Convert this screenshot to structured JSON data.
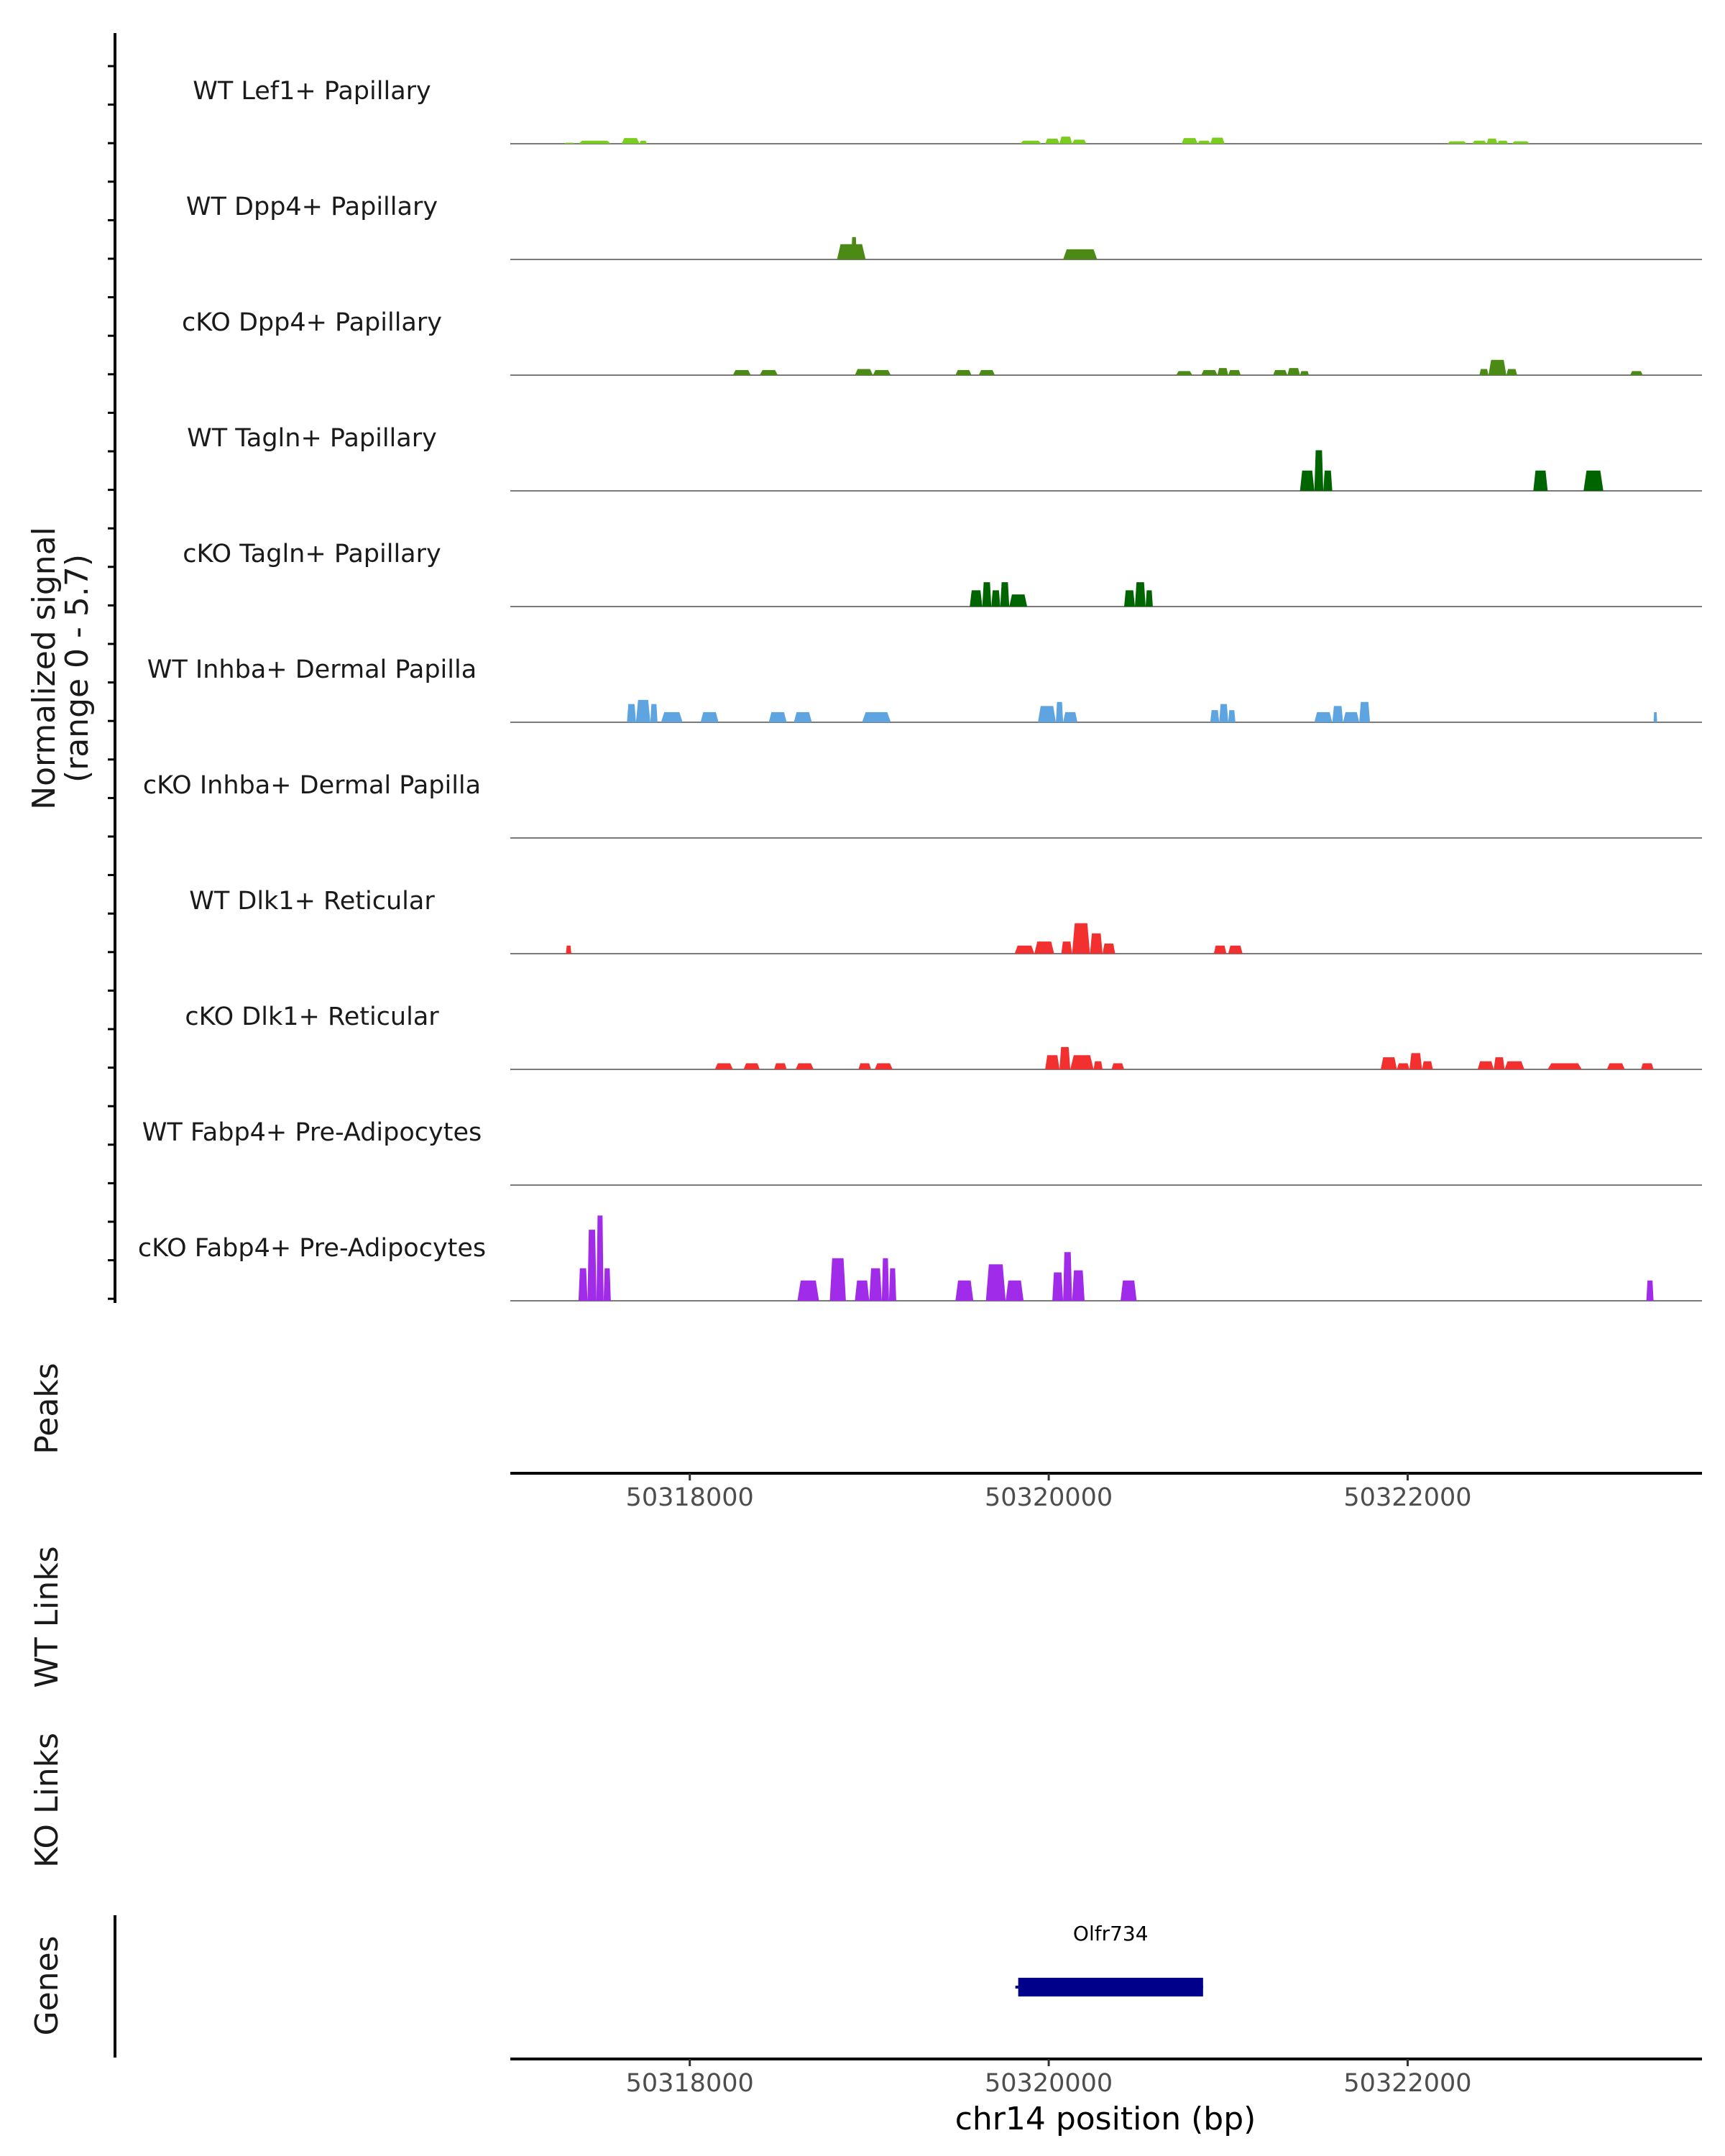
{
  "chart_data": {
    "type": "area",
    "chromosome": "chr14",
    "x_range": [
      50317000,
      50323640
    ],
    "y_range": [
      0,
      5.7
    ],
    "signal_axis_label": [
      "Normalized signal",
      "(range 0 - 5.7)"
    ],
    "peaks_label": "Peaks",
    "wt_links_label": "WT Links",
    "ko_links_label": "KO Links",
    "genes_label": "Genes",
    "xlabel": "chr14 position (bp)",
    "x_ticks": [
      50318000,
      50320000,
      50322000
    ],
    "x_tick_labels": [
      "50318000",
      "50320000",
      "50322000"
    ],
    "tracks": [
      {
        "name": "WT Lef1+ Papillary",
        "color": "#7ACC1E",
        "peaks": [
          [
            50317300,
            50317360,
            0.05
          ],
          [
            50317380,
            50317560,
            0.15
          ],
          [
            50317620,
            50317720,
            0.28
          ],
          [
            50317720,
            50317760,
            0.15
          ],
          [
            50319840,
            50319960,
            0.15
          ],
          [
            50319980,
            50320060,
            0.25
          ],
          [
            50320060,
            50320130,
            0.35
          ],
          [
            50320130,
            50320210,
            0.2
          ],
          [
            50320740,
            50320830,
            0.28
          ],
          [
            50320830,
            50320900,
            0.15
          ],
          [
            50320900,
            50320980,
            0.3
          ],
          [
            50322220,
            50322330,
            0.12
          ],
          [
            50322360,
            50322440,
            0.15
          ],
          [
            50322440,
            50322500,
            0.25
          ],
          [
            50322500,
            50322560,
            0.15
          ],
          [
            50322580,
            50322680,
            0.12
          ]
        ]
      },
      {
        "name": "WT Dpp4+ Papillary",
        "color": "#4B8B15",
        "peaks": [
          [
            50318820,
            50318980,
            0.75
          ],
          [
            50318900,
            50318930,
            1.1
          ],
          [
            50320080,
            50320270,
            0.5
          ]
        ]
      },
      {
        "name": "cKO Dpp4+ Papillary",
        "color": "#4B8B15",
        "peaks": [
          [
            50318240,
            50318340,
            0.25
          ],
          [
            50318390,
            50318490,
            0.25
          ],
          [
            50318920,
            50319020,
            0.3
          ],
          [
            50319020,
            50319120,
            0.25
          ],
          [
            50319480,
            50319570,
            0.25
          ],
          [
            50319610,
            50319700,
            0.25
          ],
          [
            50320710,
            50320800,
            0.2
          ],
          [
            50320850,
            50320940,
            0.25
          ],
          [
            50320940,
            50321000,
            0.35
          ],
          [
            50321000,
            50321070,
            0.25
          ],
          [
            50321250,
            50321330,
            0.25
          ],
          [
            50321330,
            50321400,
            0.35
          ],
          [
            50321400,
            50321450,
            0.2
          ],
          [
            50322400,
            50322450,
            0.3
          ],
          [
            50322450,
            50322550,
            0.75
          ],
          [
            50322550,
            50322610,
            0.3
          ],
          [
            50323240,
            50323310,
            0.2
          ]
        ]
      },
      {
        "name": "WT Tagln+ Papillary",
        "color": "#006400",
        "peaks": [
          [
            50321400,
            50321480,
            1.0
          ],
          [
            50321480,
            50321530,
            2.0
          ],
          [
            50321530,
            50321580,
            1.0
          ],
          [
            50322700,
            50322780,
            1.0
          ],
          [
            50322980,
            50323090,
            1.0
          ]
        ]
      },
      {
        "name": "cKO Tagln+ Papillary",
        "color": "#006400",
        "peaks": [
          [
            50319560,
            50319630,
            0.8
          ],
          [
            50319630,
            50319680,
            1.2
          ],
          [
            50319680,
            50319730,
            0.8
          ],
          [
            50319730,
            50319780,
            1.2
          ],
          [
            50319780,
            50319880,
            0.6
          ],
          [
            50320420,
            50320480,
            0.8
          ],
          [
            50320480,
            50320540,
            1.2
          ],
          [
            50320540,
            50320580,
            0.8
          ]
        ]
      },
      {
        "name": "WT Inhba+ Dermal Papilla",
        "color": "#5DA4E0",
        "peaks": [
          [
            50317650,
            50317700,
            0.9
          ],
          [
            50317700,
            50317780,
            1.1
          ],
          [
            50317780,
            50317820,
            0.9
          ],
          [
            50317840,
            50317960,
            0.5
          ],
          [
            50318060,
            50318160,
            0.5
          ],
          [
            50318440,
            50318540,
            0.5
          ],
          [
            50318580,
            50318680,
            0.5
          ],
          [
            50318960,
            50319120,
            0.5
          ],
          [
            50319940,
            50320040,
            0.8
          ],
          [
            50320040,
            50320080,
            1.0
          ],
          [
            50320080,
            50320160,
            0.5
          ],
          [
            50320900,
            50320950,
            0.6
          ],
          [
            50320950,
            50321000,
            0.9
          ],
          [
            50321000,
            50321040,
            0.6
          ],
          [
            50321480,
            50321580,
            0.5
          ],
          [
            50321580,
            50321640,
            0.8
          ],
          [
            50321640,
            50321730,
            0.5
          ],
          [
            50321730,
            50321790,
            1.0
          ],
          [
            50323370,
            50323390,
            0.5
          ]
        ]
      },
      {
        "name": "cKO Inhba+ Dermal Papilla",
        "color": "#5DA4E0",
        "peaks": []
      },
      {
        "name": "WT Dlk1+ Reticular",
        "color": "#F23030",
        "peaks": [
          [
            50317310,
            50317340,
            0.4
          ],
          [
            50319810,
            50319920,
            0.4
          ],
          [
            50319920,
            50320030,
            0.6
          ],
          [
            50320070,
            50320130,
            0.6
          ],
          [
            50320130,
            50320230,
            1.5
          ],
          [
            50320230,
            50320300,
            1.0
          ],
          [
            50320300,
            50320370,
            0.5
          ],
          [
            50320920,
            50320990,
            0.4
          ],
          [
            50321000,
            50321080,
            0.4
          ]
        ]
      },
      {
        "name": "cKO Dlk1+ Reticular",
        "color": "#F23030",
        "peaks": [
          [
            50318140,
            50318240,
            0.3
          ],
          [
            50318300,
            50318390,
            0.3
          ],
          [
            50318470,
            50318540,
            0.3
          ],
          [
            50318590,
            50318690,
            0.3
          ],
          [
            50318940,
            50319010,
            0.3
          ],
          [
            50319030,
            50319130,
            0.3
          ],
          [
            50319980,
            50320060,
            0.7
          ],
          [
            50320060,
            50320120,
            1.1
          ],
          [
            50320120,
            50320250,
            0.7
          ],
          [
            50320250,
            50320300,
            0.4
          ],
          [
            50320350,
            50320420,
            0.3
          ],
          [
            50321850,
            50321940,
            0.6
          ],
          [
            50321940,
            50322010,
            0.3
          ],
          [
            50322010,
            50322080,
            0.8
          ],
          [
            50322080,
            50322140,
            0.4
          ],
          [
            50322390,
            50322480,
            0.4
          ],
          [
            50322480,
            50322540,
            0.6
          ],
          [
            50322540,
            50322650,
            0.4
          ],
          [
            50322780,
            50322970,
            0.3
          ],
          [
            50323110,
            50323210,
            0.3
          ],
          [
            50323300,
            50323370,
            0.3
          ]
        ]
      },
      {
        "name": "WT Fabp4+ Pre-Adipocytes",
        "color": "#A02BE8",
        "peaks": []
      },
      {
        "name": "cKO Fabp4+ Pre-Adipocytes",
        "color": "#A02BE8",
        "peaks": [
          [
            50317380,
            50317430,
            1.6
          ],
          [
            50317430,
            50317480,
            3.5
          ],
          [
            50317480,
            50317520,
            4.2
          ],
          [
            50317520,
            50317560,
            1.6
          ],
          [
            50318600,
            50318720,
            1.0
          ],
          [
            50318780,
            50318870,
            2.1
          ],
          [
            50318920,
            50319000,
            1.0
          ],
          [
            50319000,
            50319070,
            1.6
          ],
          [
            50319070,
            50319110,
            2.1
          ],
          [
            50319110,
            50319150,
            1.6
          ],
          [
            50319480,
            50319580,
            1.0
          ],
          [
            50319650,
            50319760,
            1.8
          ],
          [
            50319760,
            50319860,
            1.0
          ],
          [
            50320020,
            50320080,
            1.4
          ],
          [
            50320080,
            50320130,
            2.4
          ],
          [
            50320130,
            50320200,
            1.5
          ],
          [
            50320400,
            50320490,
            1.0
          ],
          [
            50323330,
            50323370,
            1.0
          ]
        ]
      }
    ],
    "genes": [
      {
        "name": "Olfr734",
        "start": 50319830,
        "end": 50320860,
        "color": "#00008B"
      }
    ]
  }
}
